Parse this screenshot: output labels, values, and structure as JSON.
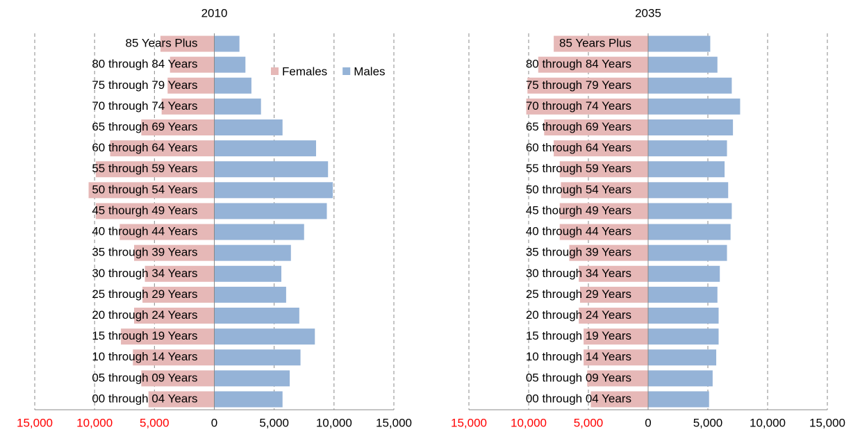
{
  "chart_data": [
    {
      "type": "bar",
      "orientation": "horizontal",
      "title": "2010",
      "categories": [
        "00 through 04 Years",
        "05 through 09 Years",
        "10 through 14 Years",
        "15 through 19 Years",
        "20 through 24 Years",
        "25 through 29 Years",
        "30 through 34 Years",
        "35 through 39 Years",
        "40 through 44 Years",
        "45 thourgh 49 Years",
        "50 through 54 Years",
        "55 through 59 Years",
        "60 through 64 Years",
        "65 through 69 Years",
        "70 through 74 Years",
        "75 through 79 Years",
        "80 through 84 Years",
        "85 Years Plus"
      ],
      "series": [
        {
          "name": "Females",
          "color": "#e6b8b7",
          "values": [
            -5500,
            -6100,
            -6800,
            -7800,
            -6700,
            -6000,
            -5800,
            -6700,
            -7900,
            -9900,
            -10500,
            -9900,
            -8700,
            -6100,
            -4400,
            -3900,
            -3700,
            -4500
          ]
        },
        {
          "name": "Males",
          "color": "#95b3d7",
          "values": [
            5700,
            6300,
            7200,
            8400,
            7100,
            6000,
            5600,
            6400,
            7500,
            9400,
            9900,
            9500,
            8500,
            5700,
            3900,
            3100,
            2600,
            2100
          ]
        }
      ],
      "xlim": [
        -15000,
        15000
      ],
      "xticks": [
        {
          "value": -15000,
          "label": "15,000"
        },
        {
          "value": -10000,
          "label": "10,000"
        },
        {
          "value": -5000,
          "label": "5,000"
        },
        0,
        {
          "value": 5000,
          "label": "5,000"
        },
        {
          "value": 10000,
          "label": "10,000"
        },
        {
          "value": 15000,
          "label": "15,000"
        }
      ],
      "negative_tick_color": "#ff0000",
      "grid": true,
      "legend": true
    },
    {
      "type": "bar",
      "orientation": "horizontal",
      "title": "2035",
      "categories": [
        "00 through 04 Years",
        "05 through 09 Years",
        "10 through 14 Years",
        "15 through 19 Years",
        "20 through 24 Years",
        "25 through 29 Years",
        "30 through 34 Years",
        "35 through 39 Years",
        "40 through 44 Years",
        "45 thourgh 49 Years",
        "50 through 54 Years",
        "55 through 59 Years",
        "60 through 64 Years",
        "65 through 69 Years",
        "70 through 74 Years",
        "75 through 79 Years",
        "80 through 84 Years",
        "85 Years Plus"
      ],
      "series": [
        {
          "color": "#e6b8b7",
          "values": [
            -4800,
            -5100,
            -5400,
            -5400,
            -5800,
            -5700,
            -5800,
            -6600,
            -7400,
            -7400,
            -7300,
            -7400,
            -7900,
            -8700,
            -10200,
            -10100,
            -9200,
            -7900
          ]
        },
        {
          "color": "#95b3d7",
          "values": [
            5100,
            5400,
            5700,
            5900,
            5900,
            5800,
            6000,
            6600,
            6900,
            7000,
            6700,
            6400,
            6600,
            7100,
            7700,
            7000,
            5800,
            5200
          ]
        }
      ],
      "xlim": [
        -15000,
        15000
      ],
      "xticks": [
        {
          "value": -15000,
          "label": "15,000"
        },
        {
          "value": -10000,
          "label": "10,000"
        },
        {
          "value": -5000,
          "label": "5,000"
        },
        0,
        {
          "value": 5000,
          "label": "5,000"
        },
        {
          "value": 10000,
          "label": "10,000"
        },
        {
          "value": 15000,
          "label": "15,000"
        }
      ],
      "negative_tick_color": "#ff0000",
      "grid": true,
      "legend": false
    }
  ]
}
